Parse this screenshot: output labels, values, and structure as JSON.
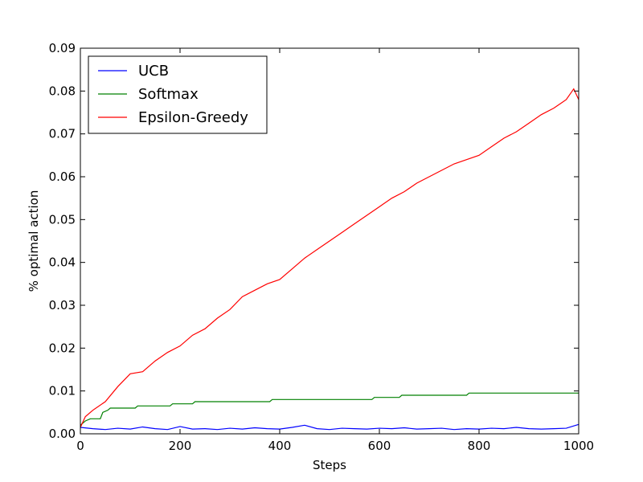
{
  "chart_data": {
    "type": "line",
    "title": "",
    "xlabel": "Steps",
    "ylabel": "% optimal action",
    "xlim": [
      0,
      1000
    ],
    "ylim": [
      0,
      0.09
    ],
    "grid": false,
    "legend_position": "top-left",
    "x_ticks": [
      0,
      200,
      400,
      600,
      800,
      1000
    ],
    "x_tick_labels": [
      "0",
      "200",
      "400",
      "600",
      "800",
      "1000"
    ],
    "y_ticks": [
      0,
      0.01,
      0.02,
      0.03,
      0.04,
      0.05,
      0.06,
      0.07,
      0.08,
      0.09
    ],
    "y_tick_labels": [
      "0.00",
      "0.01",
      "0.02",
      "0.03",
      "0.04",
      "0.05",
      "0.06",
      "0.07",
      "0.08",
      "0.09"
    ],
    "series": [
      {
        "name": "UCB",
        "color": "#0000ff",
        "x": [
          0,
          25,
          50,
          75,
          100,
          125,
          150,
          175,
          200,
          225,
          250,
          275,
          300,
          325,
          350,
          375,
          400,
          425,
          450,
          475,
          500,
          525,
          550,
          575,
          600,
          625,
          650,
          675,
          700,
          725,
          750,
          775,
          800,
          825,
          850,
          875,
          900,
          925,
          950,
          975,
          1000
        ],
        "y": [
          0.0015,
          0.0012,
          0.001,
          0.0013,
          0.0011,
          0.0016,
          0.0012,
          0.001,
          0.0017,
          0.0011,
          0.0012,
          0.001,
          0.0013,
          0.0011,
          0.0014,
          0.0012,
          0.0011,
          0.0015,
          0.002,
          0.0012,
          0.001,
          0.0013,
          0.0012,
          0.0011,
          0.0013,
          0.0012,
          0.0014,
          0.0011,
          0.0012,
          0.0013,
          0.001,
          0.0012,
          0.0011,
          0.0013,
          0.0012,
          0.0015,
          0.0012,
          0.0011,
          0.0012,
          0.0013,
          0.0022
        ]
      },
      {
        "name": "Softmax",
        "color": "#008000",
        "x": [
          0,
          10,
          20,
          30,
          40,
          45,
          55,
          60,
          110,
          115,
          180,
          185,
          225,
          230,
          380,
          385,
          585,
          590,
          640,
          645,
          775,
          780,
          1000
        ],
        "y": [
          0.002,
          0.003,
          0.0035,
          0.0035,
          0.0035,
          0.005,
          0.0055,
          0.006,
          0.006,
          0.0065,
          0.0065,
          0.007,
          0.007,
          0.0075,
          0.0075,
          0.008,
          0.008,
          0.0085,
          0.0085,
          0.009,
          0.009,
          0.0095,
          0.0095
        ]
      },
      {
        "name": "Epsilon-Greedy",
        "color": "#ff0000",
        "x": [
          0,
          10,
          25,
          50,
          75,
          100,
          125,
          150,
          175,
          200,
          225,
          250,
          275,
          300,
          325,
          350,
          375,
          400,
          425,
          450,
          475,
          500,
          525,
          550,
          575,
          600,
          625,
          650,
          675,
          700,
          725,
          750,
          775,
          800,
          825,
          850,
          875,
          900,
          925,
          950,
          975,
          990,
          1000
        ],
        "y": [
          0.0015,
          0.004,
          0.0055,
          0.0075,
          0.011,
          0.014,
          0.0145,
          0.017,
          0.019,
          0.0205,
          0.023,
          0.0245,
          0.027,
          0.029,
          0.032,
          0.0335,
          0.035,
          0.036,
          0.0385,
          0.041,
          0.043,
          0.045,
          0.047,
          0.049,
          0.051,
          0.053,
          0.055,
          0.0565,
          0.0585,
          0.06,
          0.0615,
          0.063,
          0.064,
          0.065,
          0.067,
          0.069,
          0.0705,
          0.0725,
          0.0745,
          0.076,
          0.078,
          0.0805,
          0.078
        ]
      }
    ]
  }
}
